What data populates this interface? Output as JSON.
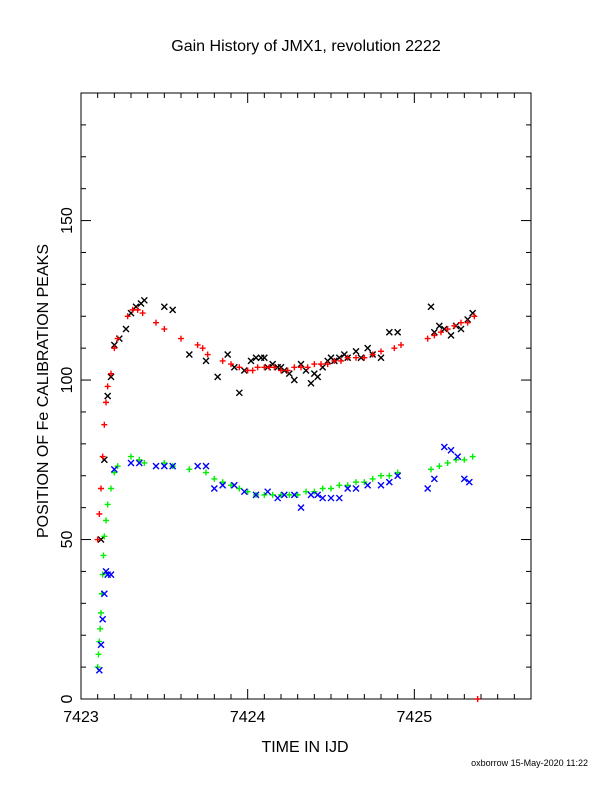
{
  "title": "Gain History of JMX1, revolution 2222",
  "footer": "oxborrow 15-May-2020 11:22",
  "colors": {
    "black": "#000000",
    "red": "#ff0000",
    "green": "#00ee00",
    "blue": "#0000ff"
  },
  "chart_data": {
    "type": "scatter",
    "title": "Gain History of JMX1, revolution 2222",
    "xlabel": "TIME IN IJD",
    "ylabel": "POSITION OF Fe CALIBRATION PEAKS",
    "xlim": [
      7423.0,
      7425.7
    ],
    "ylim": [
      0,
      190
    ],
    "xticks": [
      7423,
      7424,
      7425
    ],
    "yticks": [
      0,
      50,
      100,
      150
    ],
    "grid": false,
    "legend": "none",
    "series": [
      {
        "color": "#000000",
        "marker": "x",
        "x": [
          7423.12,
          7423.14,
          7423.16,
          7423.18,
          7423.2,
          7423.23,
          7423.27,
          7423.3,
          7423.33,
          7423.36,
          7423.38,
          7423.5,
          7423.55,
          7423.65,
          7423.75,
          7423.82,
          7423.88,
          7423.92,
          7423.95,
          7423.98,
          7424.02,
          7424.05,
          7424.08,
          7424.1,
          7424.12,
          7424.15,
          7424.18,
          7424.2,
          7424.22,
          7424.25,
          7424.28,
          7424.32,
          7424.35,
          7424.38,
          7424.4,
          7424.42,
          7424.45,
          7424.48,
          7424.5,
          7424.52,
          7424.55,
          7424.58,
          7424.6,
          7424.65,
          7424.68,
          7424.72,
          7424.75,
          7424.8,
          7424.85,
          7424.9,
          7425.1,
          7425.12,
          7425.15,
          7425.18,
          7425.22,
          7425.25,
          7425.28,
          7425.32,
          7425.35
        ],
        "y": [
          50,
          75,
          95,
          101,
          111,
          113,
          116,
          121,
          123,
          124,
          125,
          123,
          122,
          108,
          106,
          101,
          108,
          104,
          96,
          103,
          106,
          107,
          107,
          107,
          104,
          105,
          104,
          104,
          103,
          102,
          100,
          105,
          103,
          99,
          102,
          101,
          104,
          106,
          107,
          106,
          107,
          108,
          107,
          109,
          107,
          110,
          108,
          107,
          115,
          115,
          123,
          115,
          117,
          116,
          114,
          117,
          116,
          119,
          121
        ]
      },
      {
        "color": "#ff0000",
        "marker": "+",
        "x": [
          7423.1,
          7423.11,
          7423.12,
          7423.13,
          7423.14,
          7423.15,
          7423.16,
          7423.18,
          7423.2,
          7423.22,
          7423.28,
          7423.31,
          7423.34,
          7423.37,
          7423.45,
          7423.5,
          7423.6,
          7423.7,
          7423.73,
          7423.76,
          7423.85,
          7423.9,
          7423.95,
          7424.0,
          7424.03,
          7424.06,
          7424.1,
          7424.13,
          7424.16,
          7424.2,
          7424.24,
          7424.28,
          7424.32,
          7424.36,
          7424.4,
          7424.44,
          7424.48,
          7424.52,
          7424.56,
          7424.6,
          7424.65,
          7424.7,
          7424.75,
          7424.8,
          7424.88,
          7424.92,
          7425.08,
          7425.12,
          7425.16,
          7425.2,
          7425.24,
          7425.28,
          7425.32,
          7425.36,
          7425.38
        ],
        "y": [
          50,
          58,
          66,
          76,
          86,
          93,
          98,
          102,
          110,
          113,
          120,
          122,
          122,
          121,
          118,
          116,
          113,
          111,
          110,
          108,
          106,
          105,
          104,
          103,
          103,
          104,
          104,
          104,
          104,
          103,
          103,
          104,
          104,
          104,
          105,
          105,
          105,
          106,
          106,
          107,
          107,
          107,
          108,
          109,
          110,
          111,
          113,
          114,
          115,
          116,
          117,
          118,
          118,
          120,
          0
        ]
      },
      {
        "color": "#00ee00",
        "marker": "+",
        "x": [
          7423.1,
          7423.105,
          7423.11,
          7423.115,
          7423.12,
          7423.125,
          7423.13,
          7423.135,
          7423.14,
          7423.15,
          7423.16,
          7423.18,
          7423.2,
          7423.22,
          7423.3,
          7423.35,
          7423.38,
          7423.5,
          7423.55,
          7423.65,
          7423.75,
          7423.8,
          7423.85,
          7423.9,
          7423.95,
          7424.0,
          7424.05,
          7424.1,
          7424.15,
          7424.2,
          7424.25,
          7424.3,
          7424.35,
          7424.4,
          7424.45,
          7424.5,
          7424.55,
          7424.6,
          7424.65,
          7424.7,
          7424.75,
          7424.8,
          7424.85,
          7424.9,
          7425.1,
          7425.15,
          7425.2,
          7425.25,
          7425.3,
          7425.35
        ],
        "y": [
          10,
          14,
          18,
          22,
          27,
          33,
          39,
          45,
          51,
          56,
          61,
          66,
          71,
          73,
          76,
          75,
          74,
          74,
          73,
          72,
          71,
          69,
          68,
          67,
          66,
          65,
          64,
          64,
          64,
          64,
          64,
          64,
          65,
          65,
          66,
          66,
          67,
          67,
          68,
          68,
          69,
          70,
          70,
          71,
          72,
          73,
          74,
          75,
          75,
          76
        ]
      },
      {
        "color": "#0000ff",
        "marker": "x",
        "x": [
          7423.11,
          7423.12,
          7423.13,
          7423.14,
          7423.15,
          7423.16,
          7423.18,
          7423.2,
          7423.3,
          7423.35,
          7423.45,
          7423.5,
          7423.55,
          7423.7,
          7423.75,
          7423.8,
          7423.85,
          7423.92,
          7423.98,
          7424.05,
          7424.12,
          7424.18,
          7424.22,
          7424.28,
          7424.32,
          7424.38,
          7424.42,
          7424.45,
          7424.5,
          7424.55,
          7424.6,
          7424.65,
          7424.72,
          7424.8,
          7424.85,
          7424.9,
          7425.08,
          7425.12,
          7425.18,
          7425.22,
          7425.26,
          7425.3,
          7425.33
        ],
        "y": [
          9,
          17,
          25,
          33,
          40,
          39,
          39,
          72,
          74,
          74,
          73,
          73,
          73,
          73,
          73,
          66,
          67,
          67,
          65,
          64,
          65,
          63,
          64,
          64,
          60,
          64,
          64,
          63,
          63,
          63,
          66,
          66,
          67,
          67,
          68,
          70,
          66,
          69,
          79,
          78,
          76,
          69,
          68
        ]
      }
    ]
  }
}
